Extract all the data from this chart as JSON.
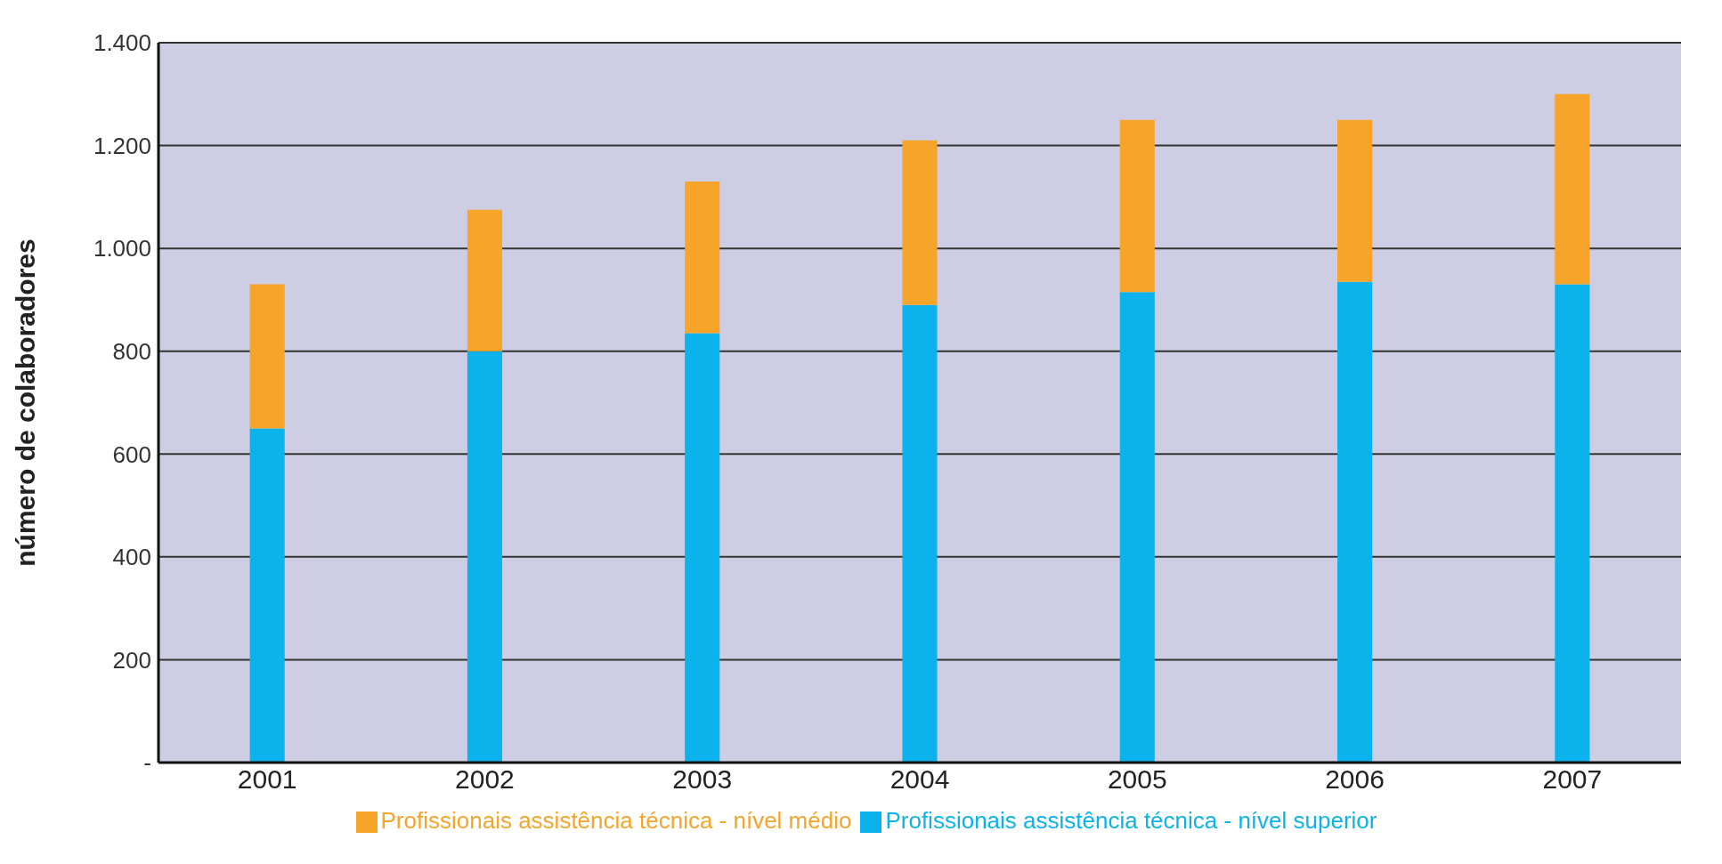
{
  "chart_data": {
    "type": "bar",
    "stacked": true,
    "ylabel": "número de colaboradores",
    "categories": [
      "2001",
      "2002",
      "2003",
      "2004",
      "2005",
      "2006",
      "2007"
    ],
    "series": [
      {
        "name": "Profissionais assistência técnica - nível superior",
        "color": "#0bb2ec",
        "values": [
          650,
          800,
          835,
          890,
          915,
          935,
          930
        ]
      },
      {
        "name": "Profissionais assistência técnica - nível médio",
        "color": "#f6a42a",
        "values": [
          280,
          275,
          295,
          320,
          335,
          315,
          370
        ]
      }
    ],
    "ylim": [
      0,
      1400
    ],
    "yticks": [
      {
        "value": 0,
        "label": "-"
      },
      200,
      400,
      600,
      800,
      {
        "value": 1000,
        "label": "1.000"
      },
      {
        "value": 1200,
        "label": "1.200"
      },
      {
        "value": 1400,
        "label": "1.400"
      }
    ],
    "grid": "y",
    "legend": "bottom"
  }
}
